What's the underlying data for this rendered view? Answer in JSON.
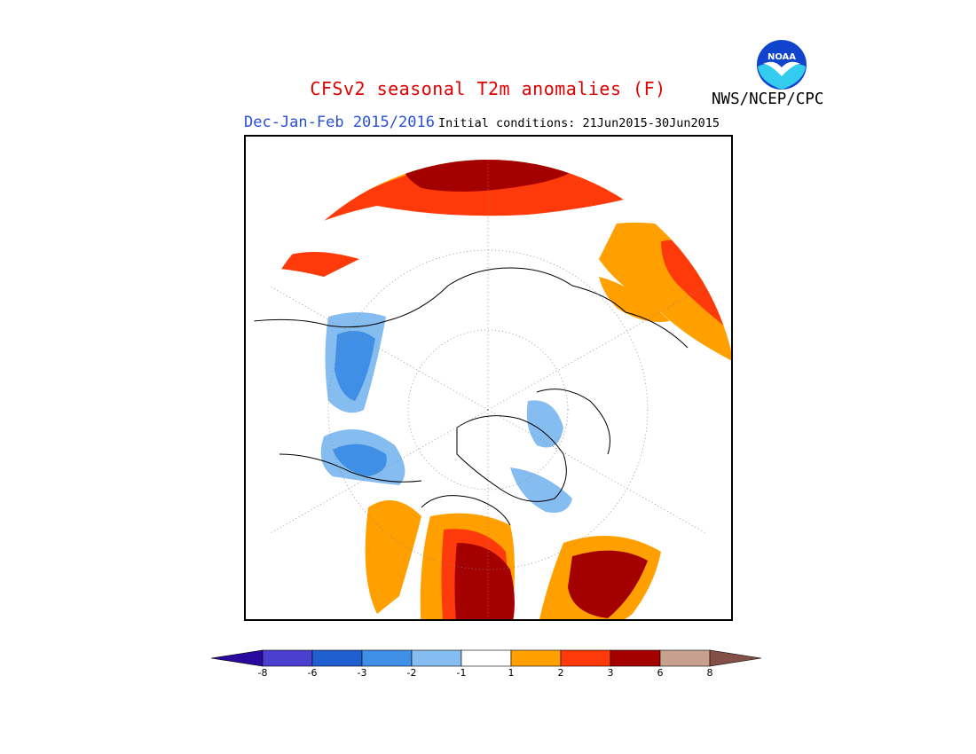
{
  "title": {
    "text": "CFSv2 seasonal T2m anomalies (F)",
    "color": "#e00000"
  },
  "season": {
    "text": "Dec-Jan-Feb 2015/2016",
    "color": "#2a4fd8"
  },
  "initial_conditions": {
    "text": "Initial conditions: 21Jun2015-30Jun2015"
  },
  "agency": {
    "text": "NWS/NCEP/CPC"
  },
  "logo": {
    "text": "NOAA",
    "icon": "noaa-logo-icon"
  },
  "map": {
    "projection": "north-polar-stereographic",
    "coastlines": true,
    "gridlines": "dotted"
  },
  "legend": {
    "bins": [
      {
        "color": "#2a0a9e"
      },
      {
        "color": "#4a3fcf"
      },
      {
        "color": "#1f5fcf"
      },
      {
        "color": "#3f8fe6"
      },
      {
        "color": "#86bdf0"
      },
      {
        "color": "#ffffff"
      },
      {
        "color": "#ffa000"
      },
      {
        "color": "#ff3a0a"
      },
      {
        "color": "#a50000"
      },
      {
        "color": "#c8a090"
      },
      {
        "color": "#825046"
      }
    ],
    "tick_labels": [
      "-8",
      "-6",
      "-3",
      "-2",
      "-1",
      "1",
      "2",
      "3",
      "6",
      "8"
    ]
  }
}
